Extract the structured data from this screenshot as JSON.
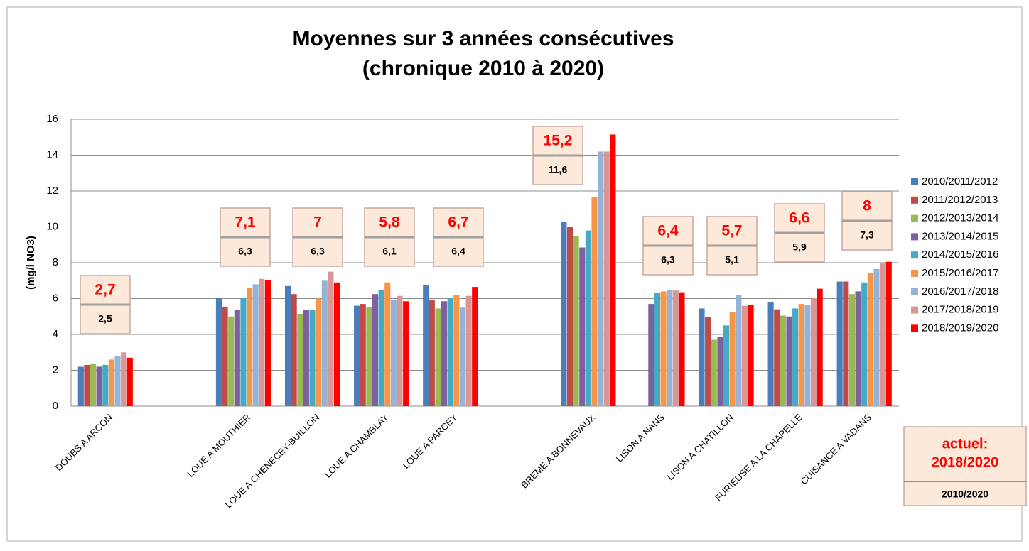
{
  "chart_data": {
    "type": "bar",
    "title": [
      "Moyennes sur 3 années consécutives",
      "(chronique 2010 à 2020)"
    ],
    "y_label": "(mg/l NO3)",
    "categories": [
      "DOUBS A ARCON",
      null,
      "LOUE A MOUTHIER",
      "LOUE A CHENECEY-BUILLON",
      "LOUE A CHAMBLAY",
      "LOUE A PARCEY",
      null,
      "BREME A BONNEVAUX",
      "LISON A NANS",
      "LISON A CHATILLON",
      "FURIEUSE A LA CHAPELLE",
      "CUISANCE A VADANS"
    ],
    "series": [
      {
        "name": "2010/2011/2012",
        "color": "#4a7ebb",
        "values": [
          2.2,
          null,
          6.05,
          6.7,
          5.6,
          6.75,
          null,
          10.3,
          null,
          5.45,
          5.8,
          6.95
        ]
      },
      {
        "name": "2011/2012/2013",
        "color": "#be4b48",
        "values": [
          2.3,
          null,
          5.55,
          6.25,
          5.7,
          5.9,
          null,
          10.0,
          null,
          4.95,
          5.4,
          6.95
        ]
      },
      {
        "name": "2012/2013/2014",
        "color": "#98b954",
        "values": [
          2.35,
          null,
          5.0,
          5.15,
          5.5,
          5.45,
          null,
          9.5,
          null,
          3.7,
          5.05,
          6.25
        ]
      },
      {
        "name": "2013/2014/2015",
        "color": "#7d60a0",
        "values": [
          2.2,
          null,
          5.35,
          5.35,
          6.25,
          5.85,
          null,
          8.85,
          5.7,
          3.85,
          5.0,
          6.4
        ]
      },
      {
        "name": "2014/2015/2016",
        "color": "#46aac5",
        "values": [
          2.3,
          null,
          6.05,
          5.35,
          6.5,
          6.05,
          null,
          9.8,
          6.3,
          4.5,
          5.45,
          6.9
        ]
      },
      {
        "name": "2015/2016/2017",
        "color": "#f79646",
        "values": [
          2.6,
          null,
          6.6,
          6.0,
          6.9,
          6.2,
          null,
          11.65,
          6.4,
          5.25,
          5.7,
          7.45
        ]
      },
      {
        "name": "2016/2017/2018",
        "color": "#95b3d7",
        "values": [
          2.8,
          null,
          6.8,
          7.0,
          5.9,
          5.5,
          null,
          14.2,
          6.5,
          6.2,
          5.65,
          7.65
        ]
      },
      {
        "name": "2017/2018/2019",
        "color": "#d99694",
        "values": [
          3.0,
          null,
          7.1,
          7.5,
          6.15,
          6.15,
          null,
          14.2,
          6.45,
          5.6,
          6.05,
          8.0
        ]
      },
      {
        "name": "2018/2019/2020",
        "color": "#ff0000",
        "values": [
          2.7,
          null,
          7.05,
          6.9,
          5.85,
          6.65,
          null,
          15.15,
          6.35,
          5.65,
          6.55,
          8.05
        ]
      }
    ],
    "annotations_current": [
      "2,7",
      null,
      "7,1",
      "7",
      "5,8",
      "6,7",
      null,
      "15,2",
      "6,4",
      "5,7",
      "6,6",
      "8"
    ],
    "annotations_period": [
      "2,5",
      null,
      "6,3",
      "6,3",
      "6,1",
      "6,4",
      null,
      "11,6",
      "6,3",
      "5,1",
      "5,9",
      "7,3"
    ],
    "note_current": [
      "actuel:",
      "2018/2020"
    ],
    "note_period": "2010/2020",
    "ylim": [
      0,
      16
    ],
    "yticks": [
      0,
      2,
      4,
      6,
      8,
      10,
      12,
      14,
      16
    ],
    "grid": true
  }
}
